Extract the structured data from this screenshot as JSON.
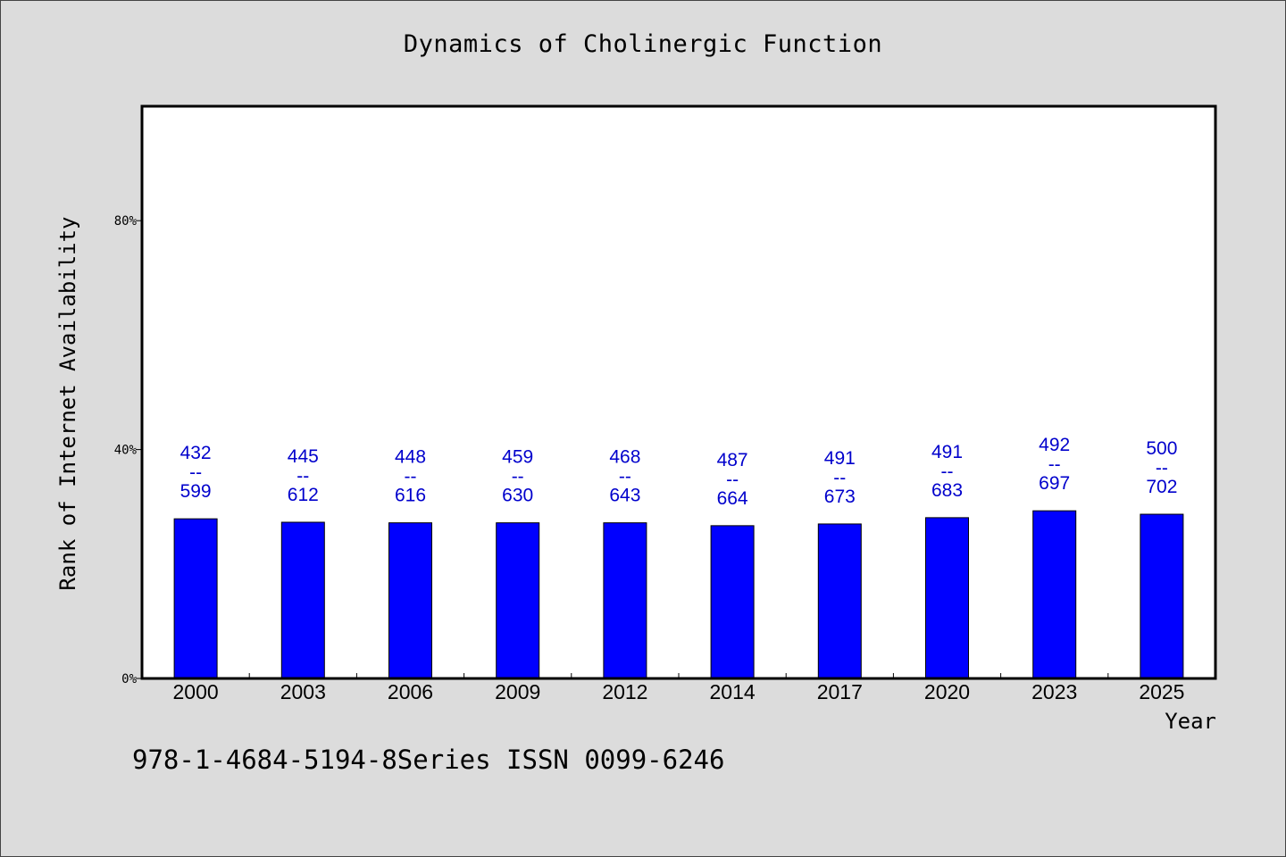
{
  "chart_data": {
    "type": "bar",
    "title": "Dynamics of Cholinergic Function",
    "xlabel": "Year",
    "ylabel": "Rank of Internet Availability",
    "note": "978-1-4684-5194-8Series ISSN 0099-6246",
    "categories": [
      "2000",
      "2003",
      "2006",
      "2009",
      "2012",
      "2014",
      "2017",
      "2020",
      "2023",
      "2025"
    ],
    "values": [
      27.9,
      27.3,
      27.2,
      27.2,
      27.2,
      26.7,
      27.0,
      28.1,
      29.3,
      28.7
    ],
    "label_top": [
      "432",
      "445",
      "448",
      "459",
      "468",
      "487",
      "491",
      "491",
      "492",
      "500"
    ],
    "label_separator": "--",
    "label_bottom": [
      "599",
      "612",
      "616",
      "630",
      "643",
      "664",
      "673",
      "683",
      "697",
      "702"
    ],
    "ylim": [
      0,
      100
    ],
    "yticks": [
      0,
      40,
      80
    ],
    "ytick_labels": [
      "0%",
      "40%",
      "80%"
    ],
    "grid": false,
    "colors": {
      "bar": "#0000ff",
      "bar_edge": "#000000",
      "label": "#0000cc",
      "plot_bg": "#ffffff",
      "page_bg": "#dcdcdc"
    }
  }
}
